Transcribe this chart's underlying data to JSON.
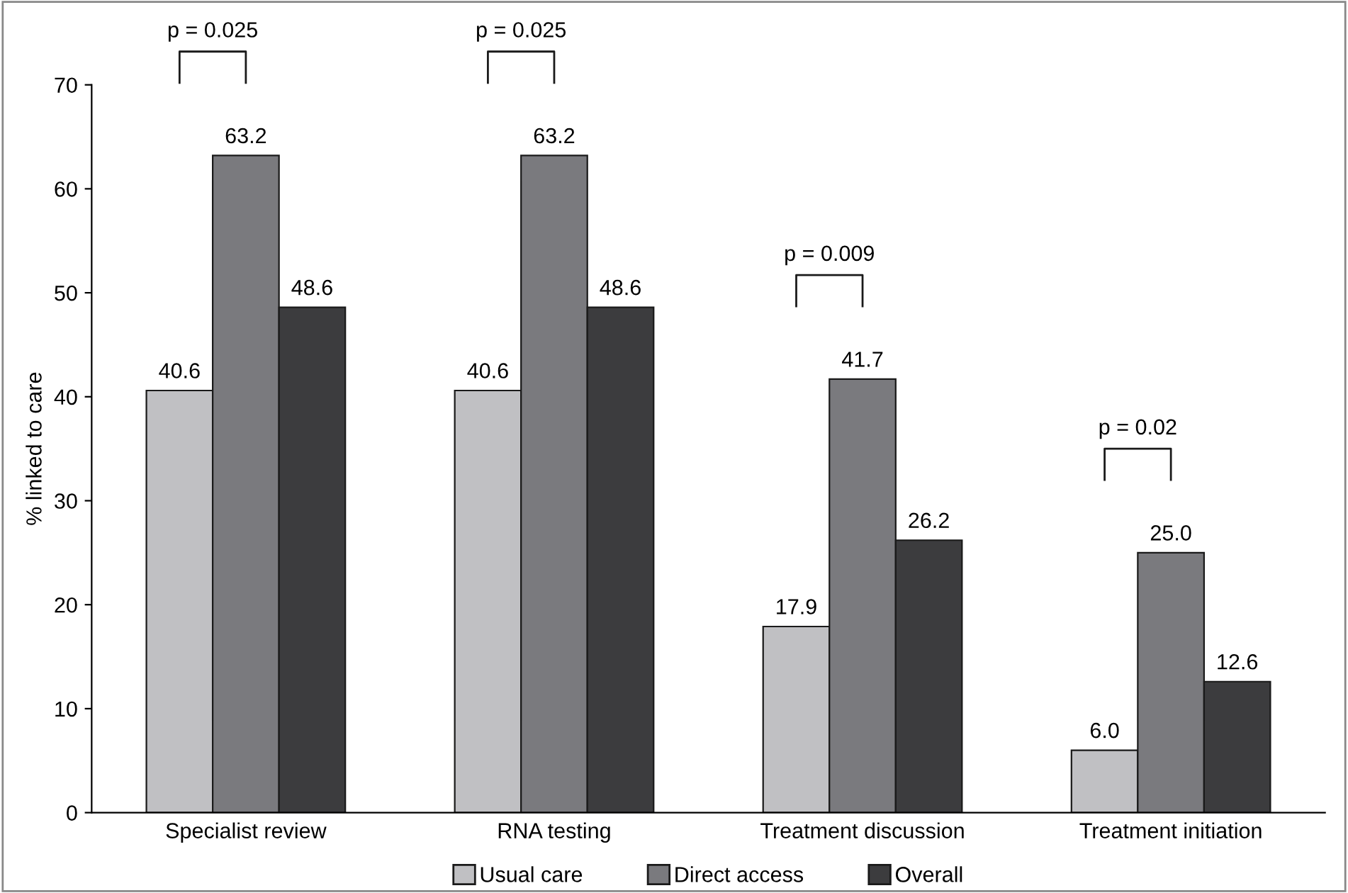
{
  "chart_data": {
    "type": "bar",
    "ylabel": "% linked to care",
    "categories": [
      "Specialist review",
      "RNA testing",
      "Treatment discussion",
      "Treatment initiation"
    ],
    "series": [
      {
        "name": "Usual care",
        "color": "#c0c0c3",
        "values": [
          40.6,
          40.6,
          17.9,
          6.0
        ]
      },
      {
        "name": "Direct access",
        "color": "#7a7a7e",
        "values": [
          63.2,
          63.2,
          41.7,
          25.0
        ]
      },
      {
        "name": "Overall",
        "color": "#3c3c3e",
        "values": [
          48.6,
          48.6,
          26.2,
          12.6
        ]
      }
    ],
    "value_labels": [
      [
        "40.6",
        "40.6",
        "17.9",
        "6.0"
      ],
      [
        "63.2",
        "63.2",
        "41.7",
        "25.0"
      ],
      [
        "48.6",
        "48.6",
        "26.2",
        "12.6"
      ]
    ],
    "ylim": [
      0,
      70
    ],
    "yticks": [
      0,
      10,
      20,
      30,
      40,
      50,
      60,
      70
    ],
    "annotations": [
      "p = 0.025",
      "p = 0.025",
      "p = 0.009",
      "p = 0.02"
    ],
    "grid": false,
    "legend": "bottom"
  }
}
